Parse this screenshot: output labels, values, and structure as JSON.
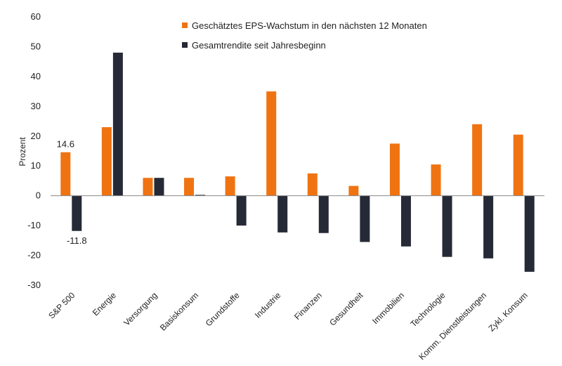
{
  "chart_data": {
    "type": "bar",
    "title": "",
    "xlabel": "",
    "ylabel": "Prozent",
    "ylim": [
      -30,
      60
    ],
    "yticks": [
      60,
      50,
      40,
      30,
      20,
      10,
      0,
      -10,
      -20,
      -30
    ],
    "grid": false,
    "legend_position": "top-center",
    "categories": [
      "S&P 500",
      "Energie",
      "Versorgung",
      "Basiskonsum",
      "Grundstoffe",
      "Industrie",
      "Finanzen",
      "Gesundheit",
      "Immobilien",
      "Technologie",
      "Komm. Dienstleistungen",
      "Zykl. Konsum"
    ],
    "series": [
      {
        "name": "Geschätztes EPS-Wachstum in den nächsten 12 Monaten",
        "color": "#F07312",
        "values": [
          14.6,
          23,
          6,
          6,
          6.5,
          35,
          7.5,
          3.3,
          17.5,
          10.5,
          24,
          20.5
        ]
      },
      {
        "name": "Gesamtrendite seit Jahresbeginn",
        "color": "#262A36",
        "values": [
          -11.8,
          48,
          6,
          0.3,
          -10,
          -12.3,
          -12.5,
          -15.5,
          -17,
          -20.5,
          -21,
          -25.5
        ]
      }
    ],
    "data_labels": [
      {
        "series": 0,
        "category": 0,
        "text": "14.6"
      },
      {
        "series": 1,
        "category": 0,
        "text": "-11.8"
      }
    ]
  }
}
